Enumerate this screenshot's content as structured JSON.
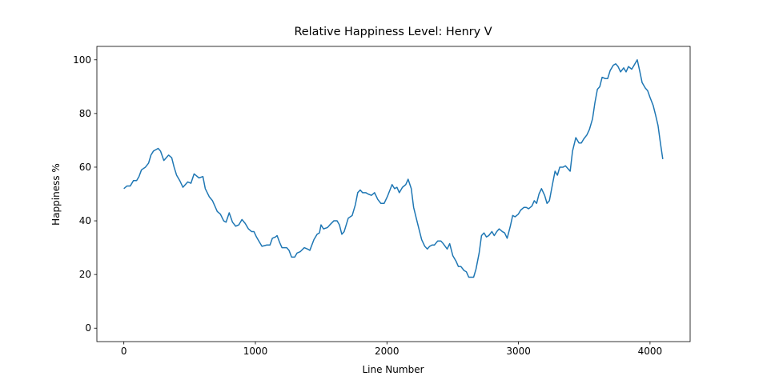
{
  "chart_data": {
    "type": "line",
    "title": "Relative Happiness Level: Henry V",
    "x_label": "Line Number",
    "y_label": "Happiness %",
    "color": "#1f77b4",
    "x": [
      0,
      24,
      49,
      73,
      97,
      115,
      134,
      164,
      188,
      206,
      225,
      243,
      261,
      279,
      304,
      322,
      340,
      364,
      382,
      401,
      425,
      449,
      486,
      510,
      534,
      571,
      601,
      619,
      649,
      674,
      710,
      734,
      759,
      777,
      801,
      826,
      850,
      874,
      898,
      923,
      947,
      971,
      989,
      1008,
      1026,
      1050,
      1087,
      1111,
      1129,
      1153,
      1165,
      1184,
      1202,
      1238,
      1256,
      1275,
      1299,
      1317,
      1341,
      1372,
      1396,
      1414,
      1445,
      1469,
      1487,
      1499,
      1518,
      1548,
      1566,
      1596,
      1621,
      1639,
      1657,
      1675,
      1706,
      1736,
      1760,
      1778,
      1797,
      1815,
      1839,
      1857,
      1882,
      1906,
      1930,
      1954,
      1979,
      2003,
      2039,
      2058,
      2076,
      2094,
      2118,
      2143,
      2161,
      2185,
      2203,
      2228,
      2246,
      2264,
      2288,
      2307,
      2325,
      2343,
      2361,
      2386,
      2410,
      2428,
      2458,
      2477,
      2501,
      2525,
      2543,
      2562,
      2586,
      2604,
      2622,
      2659,
      2677,
      2701,
      2719,
      2738,
      2756,
      2774,
      2798,
      2816,
      2835,
      2853,
      2877,
      2895,
      2914,
      2938,
      2956,
      2974,
      2999,
      3017,
      3041,
      3059,
      3077,
      3102,
      3120,
      3138,
      3156,
      3175,
      3199,
      3217,
      3235,
      3260,
      3278,
      3296,
      3314,
      3339,
      3357,
      3375,
      3393,
      3411,
      3436,
      3460,
      3478,
      3496,
      3520,
      3539,
      3563,
      3581,
      3600,
      3618,
      3636,
      3660,
      3678,
      3697,
      3721,
      3739,
      3757,
      3776,
      3800,
      3818,
      3836,
      3861,
      3879,
      3903,
      3921,
      3940,
      3964,
      3982,
      4000,
      4024,
      4042,
      4061,
      4079,
      4097
    ],
    "values": [
      52,
      53,
      53,
      55,
      55,
      56.5,
      59,
      60,
      61.5,
      64.5,
      66,
      66.5,
      67,
      66,
      62.5,
      63.5,
      64.5,
      63.5,
      60,
      57,
      55,
      52.5,
      54.5,
      54,
      57.5,
      56,
      56.5,
      52,
      49,
      47.5,
      43.5,
      42.5,
      40,
      39.5,
      43,
      39.5,
      38,
      38.5,
      40.5,
      39,
      37,
      36,
      36,
      34,
      32.5,
      30.5,
      31,
      31,
      33.5,
      34,
      34.5,
      32,
      30,
      30,
      29,
      26.5,
      26.5,
      28,
      28.5,
      30,
      29.5,
      29,
      33,
      35,
      35.5,
      38.5,
      37,
      37.5,
      38.5,
      40,
      40,
      38.5,
      35,
      36,
      41,
      42,
      46,
      50.5,
      51.5,
      50.5,
      50.5,
      50,
      49.5,
      50.5,
      48,
      46.5,
      46.5,
      49,
      53.5,
      52,
      52.5,
      50.5,
      52.5,
      53.5,
      55.5,
      52,
      45,
      40,
      36.5,
      33,
      30.5,
      29.5,
      30.5,
      31,
      31,
      32.5,
      32.5,
      31.5,
      29.5,
      31.5,
      27,
      25,
      23,
      23,
      21.5,
      21,
      19,
      19,
      22,
      28,
      34.5,
      35.5,
      34,
      34.5,
      36,
      34.5,
      36,
      37,
      36,
      35.5,
      33.5,
      38,
      42,
      41.5,
      42.5,
      44,
      45,
      45,
      44.5,
      45.5,
      47.5,
      46.5,
      50,
      52,
      49.5,
      46.5,
      47.5,
      54,
      58.5,
      57,
      60,
      60,
      60.5,
      59.5,
      58.5,
      66,
      71,
      69,
      69,
      70.5,
      72,
      74,
      78,
      84,
      89,
      90,
      93.5,
      93,
      93,
      96,
      98,
      98.5,
      97.5,
      95.5,
      97,
      95.5,
      97.5,
      96.5,
      98,
      100,
      96,
      91.5,
      89.5,
      88.5,
      86,
      83,
      79.5,
      75.5,
      69,
      63
    ],
    "xlim": [
      -205,
      4305
    ],
    "ylim": [
      -5,
      105
    ],
    "xticks": [
      0,
      1000,
      2000,
      3000,
      4000
    ],
    "yticks": [
      0,
      20,
      40,
      60,
      80,
      100
    ]
  }
}
